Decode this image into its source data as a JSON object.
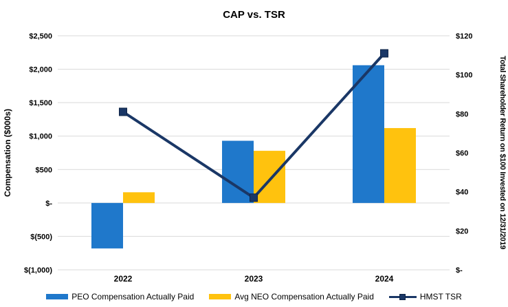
{
  "title": "CAP vs. TSR",
  "colors": {
    "peo_bar": "#1F78CB",
    "neo_bar": "#FFC20E",
    "tsr_line": "#1A3766",
    "tsr_marker_edge": "#0F2446",
    "gridline": "#D9D9D9",
    "text": "#000000"
  },
  "left_axis": {
    "label": "Compensation ($000s)",
    "ticks": [
      {
        "label": "$2,500",
        "value": 2500
      },
      {
        "label": "$2,000",
        "value": 2000
      },
      {
        "label": "$1,500",
        "value": 1500
      },
      {
        "label": "$1,000",
        "value": 1000
      },
      {
        "label": "$500",
        "value": 500
      },
      {
        "label": "$-",
        "value": 0
      },
      {
        "label": "$(500)",
        "value": -500
      },
      {
        "label": "$(1,000)",
        "value": -1000
      }
    ]
  },
  "right_axis": {
    "label": "Total Shareholder Return on $100 Invested on 12/31/2019",
    "ticks": [
      {
        "label": "$120",
        "value": 120
      },
      {
        "label": "$100",
        "value": 100
      },
      {
        "label": "$80",
        "value": 80
      },
      {
        "label": "$60",
        "value": 60
      },
      {
        "label": "$40",
        "value": 40
      },
      {
        "label": "$20",
        "value": 20
      },
      {
        "label": "$-",
        "value": 0
      }
    ]
  },
  "legend": [
    {
      "label": "PEO Compensation Actually Paid",
      "type": "bar",
      "color": "#1F78CB"
    },
    {
      "label": "Avg NEO Compensation Actually Paid",
      "type": "bar",
      "color": "#FFC20E"
    },
    {
      "label": "HMST TSR",
      "type": "line",
      "color": "#1A3766"
    }
  ],
  "chart_data": {
    "type": "bar",
    "subtype": "combo-bar-line-dual-axis",
    "title": "CAP vs. TSR",
    "categories": [
      "2022",
      "2023",
      "2024"
    ],
    "series": [
      {
        "name": "PEO Compensation Actually Paid",
        "type": "bar",
        "axis": "left",
        "color": "#1F78CB",
        "values": [
          -680,
          930,
          2060
        ]
      },
      {
        "name": "Avg NEO Compensation Actually Paid",
        "type": "bar",
        "axis": "left",
        "color": "#FFC20E",
        "values": [
          160,
          780,
          1120
        ]
      },
      {
        "name": "HMST TSR",
        "type": "line",
        "axis": "right",
        "color": "#1A3766",
        "values": [
          81,
          37,
          111
        ]
      }
    ],
    "left_ylabel": "Compensation ($000s)",
    "right_ylabel": "Total Shareholder Return on $100 Invested on 12/31/2019",
    "left_ylim": [
      -1000,
      2500
    ],
    "right_ylim": [
      0,
      120
    ],
    "left_tick_step": 500,
    "right_tick_step": 20,
    "grid": true,
    "legend_position": "bottom"
  }
}
